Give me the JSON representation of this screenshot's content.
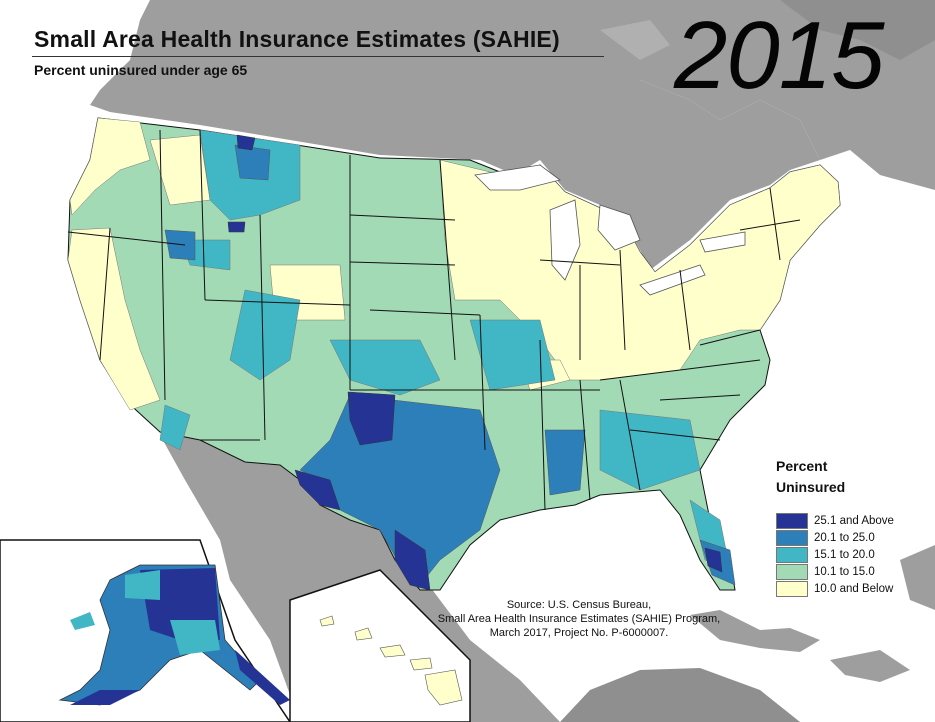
{
  "header": {
    "title": "Small Area Health Insurance Estimates (SAHIE)",
    "subtitle": "Percent uninsured under age 65",
    "year": "2015"
  },
  "legend": {
    "title_line1": "Percent",
    "title_line2": "Uninsured",
    "items": [
      {
        "label": "25.1 and Above",
        "color": "#253494"
      },
      {
        "label": "20.1 to 25.0",
        "color": "#2c7fb8"
      },
      {
        "label": "15.1 to 20.0",
        "color": "#41b6c4"
      },
      {
        "label": "10.1 to 15.0",
        "color": "#a1dab4"
      },
      {
        "label": "10.0 and Below",
        "color": "#ffffcc"
      }
    ]
  },
  "source": {
    "line1": "Source: U.S. Census Bureau,",
    "line2": "Small Area Health Insurance Estimates (SAHIE) Program,",
    "line3": "March 2017, Project No. P-6000007."
  },
  "colors": {
    "land_other": "#9e9e9e",
    "water": "#ffffff",
    "state_border": "#111111",
    "county_border": "#666666"
  }
}
